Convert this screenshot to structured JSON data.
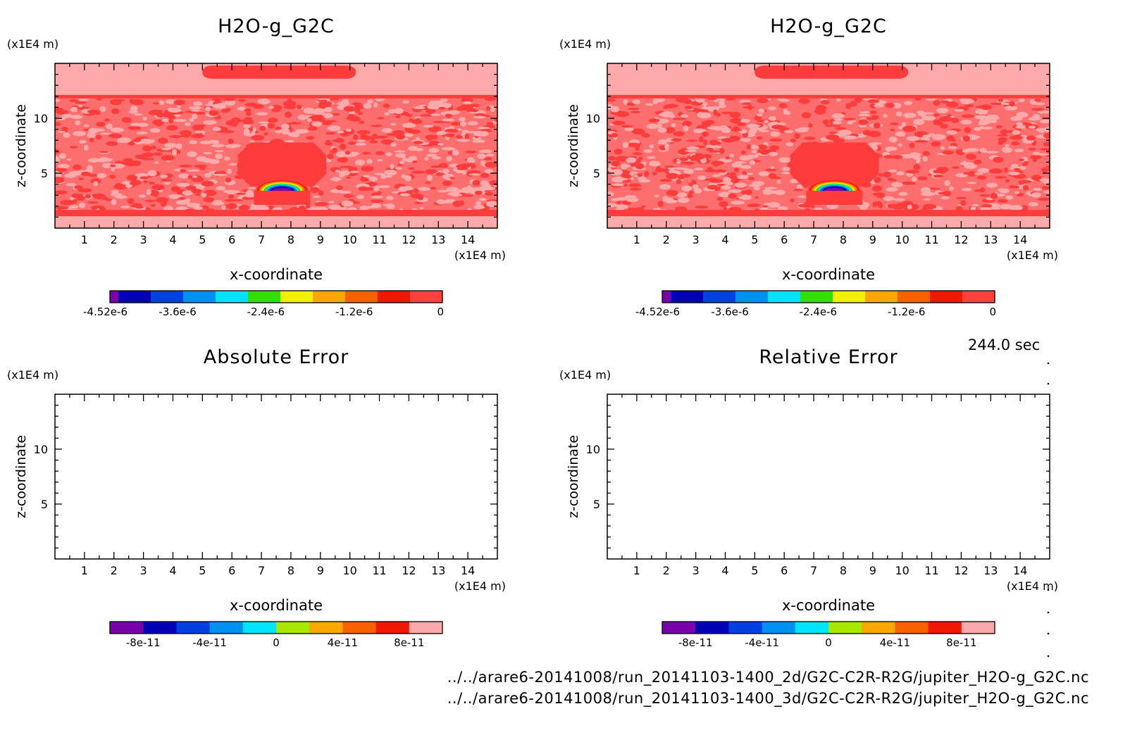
{
  "chart_data": [
    {
      "type": "heatmap",
      "title": "H2O-g_G2C",
      "xlabel": "x-coordinate",
      "ylabel": "z-coordinate",
      "xunit": "(x1E4 m)",
      "yunit": "(x1E4 m)",
      "xlim": [
        0,
        15
      ],
      "ylim": [
        0,
        15
      ],
      "xticks": [
        1,
        2,
        3,
        4,
        5,
        6,
        7,
        8,
        9,
        10,
        11,
        12,
        13,
        14
      ],
      "yticks": [
        5,
        10
      ],
      "colorbar": {
        "ticks": [
          "-4.52e-6",
          "-3.6e-6",
          "-2.4e-6",
          "-1.2e-6",
          "0"
        ],
        "colors": [
          "#7a00a8",
          "#0000b4",
          "#0040e0",
          "#0090f0",
          "#00e4ff",
          "#30e000",
          "#f0f000",
          "#f8a800",
          "#f86000",
          "#f01800",
          "#ff4040"
        ]
      },
      "field": {
        "background": "#ffaaaa",
        "band_color": "#ff3c3c",
        "noise_region_z": [
          1.4,
          11.8
        ],
        "top_layer_z": 12.0,
        "top_blob": {
          "x": [
            5.0,
            10.2
          ],
          "z": [
            13.6,
            14.8
          ]
        },
        "central_blob": {
          "x": [
            6.2,
            9.2
          ],
          "z": [
            3.8,
            7.8
          ]
        },
        "plume_center_x": 7.7,
        "plume_base_z": 3.4,
        "min_value": -4.52e-06
      }
    },
    {
      "type": "heatmap",
      "title": "H2O-g_G2C",
      "xlabel": "x-coordinate",
      "ylabel": "z-coordinate",
      "xunit": "(x1E4 m)",
      "yunit": "(x1E4 m)",
      "xlim": [
        0,
        15
      ],
      "ylim": [
        0,
        15
      ],
      "xticks": [
        1,
        2,
        3,
        4,
        5,
        6,
        7,
        8,
        9,
        10,
        11,
        12,
        13,
        14
      ],
      "yticks": [
        5,
        10
      ],
      "colorbar": {
        "ticks": [
          "-4.52e-6",
          "-3.6e-6",
          "-2.4e-6",
          "-1.2e-6",
          "0"
        ],
        "colors": [
          "#7a00a8",
          "#0000b4",
          "#0040e0",
          "#0090f0",
          "#00e4ff",
          "#30e000",
          "#f0f000",
          "#f8a800",
          "#f86000",
          "#f01800",
          "#ff4040"
        ]
      },
      "field": {
        "background": "#ffaaaa",
        "band_color": "#ff3c3c",
        "noise_region_z": [
          1.4,
          11.8
        ],
        "top_layer_z": 12.0,
        "top_blob": {
          "x": [
            5.0,
            10.2
          ],
          "z": [
            13.6,
            14.8
          ]
        },
        "central_blob": {
          "x": [
            6.2,
            9.2
          ],
          "z": [
            3.8,
            7.8
          ]
        },
        "plume_center_x": 7.7,
        "plume_base_z": 3.4,
        "min_value": -4.52e-06
      }
    },
    {
      "type": "heatmap",
      "title": "Absolute Error",
      "xlabel": "x-coordinate",
      "ylabel": "z-coordinate",
      "xunit": "(x1E4 m)",
      "yunit": "(x1E4 m)",
      "xlim": [
        0,
        15
      ],
      "ylim": [
        0,
        15
      ],
      "xticks": [
        1,
        2,
        3,
        4,
        5,
        6,
        7,
        8,
        9,
        10,
        11,
        12,
        13,
        14
      ],
      "yticks": [
        5,
        10
      ],
      "colorbar": {
        "ticks": [
          "-8e-11",
          "-4e-11",
          "0",
          "4e-11",
          "8e-11"
        ],
        "colors": [
          "#7a00a8",
          "#0000b4",
          "#0040e0",
          "#0090f0",
          "#00e4ff",
          "#a8e800",
          "#f8a800",
          "#f86000",
          "#f01800",
          "#ffaaaa"
        ]
      },
      "field": null
    },
    {
      "type": "heatmap",
      "title": "Relative Error",
      "xlabel": "x-coordinate",
      "ylabel": "z-coordinate",
      "xunit": "(x1E4 m)",
      "yunit": "(x1E4 m)",
      "xlim": [
        0,
        15
      ],
      "ylim": [
        0,
        15
      ],
      "xticks": [
        1,
        2,
        3,
        4,
        5,
        6,
        7,
        8,
        9,
        10,
        11,
        12,
        13,
        14
      ],
      "yticks": [
        5,
        10
      ],
      "colorbar": {
        "ticks": [
          "-8e-11",
          "-4e-11",
          "0",
          "4e-11",
          "8e-11"
        ],
        "colors": [
          "#7a00a8",
          "#0000b4",
          "#0040e0",
          "#0090f0",
          "#00e4ff",
          "#a8e800",
          "#f8a800",
          "#f86000",
          "#f01800",
          "#ffaaaa"
        ]
      },
      "field": null
    }
  ],
  "time_label": "244.0 sec",
  "footer": {
    "file_2d": "../../arare6-20141008/run_20141103-1400_2d/G2C-C2R-R2G/jupiter_H2O-g_G2C.nc",
    "file_3d": "../../arare6-20141008/run_20141103-1400_3d/G2C-C2R-R2G/jupiter_H2O-g_G2C.nc"
  }
}
